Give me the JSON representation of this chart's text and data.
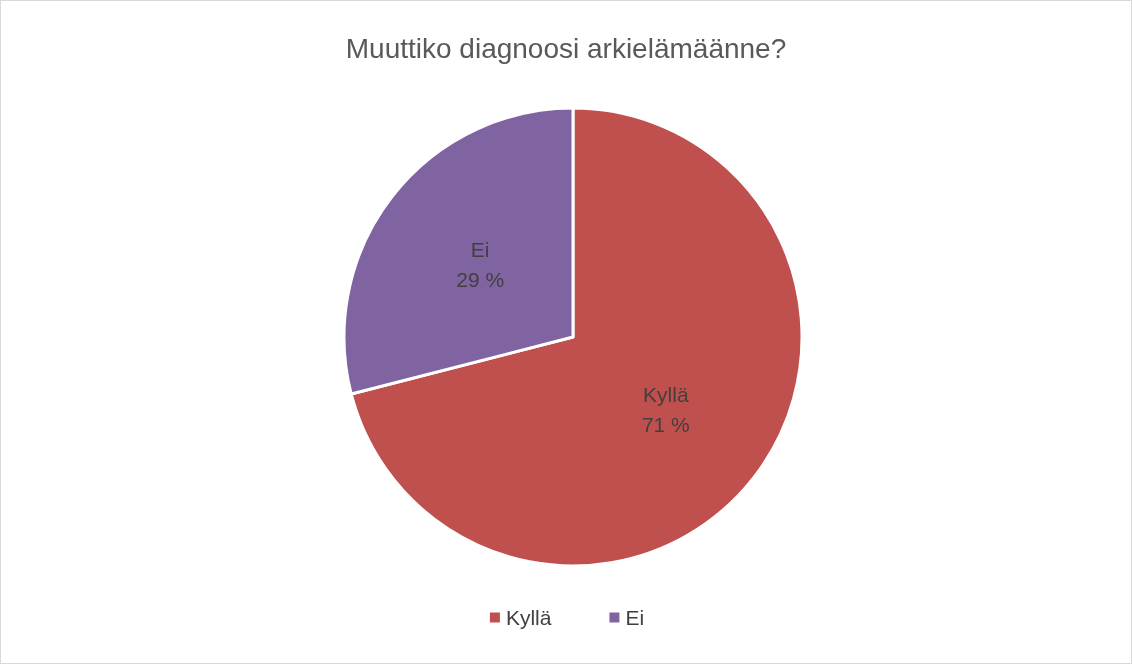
{
  "chart_data": {
    "type": "pie",
    "title": "Muuttiko diagnoosi arkielämäänne?",
    "categories": [
      "Kyllä",
      "Ei"
    ],
    "values": [
      71,
      29
    ],
    "value_labels": [
      "71 %",
      "29 %"
    ],
    "colors": [
      "#c0504d",
      "#8064a2"
    ],
    "legend": "bottom"
  }
}
